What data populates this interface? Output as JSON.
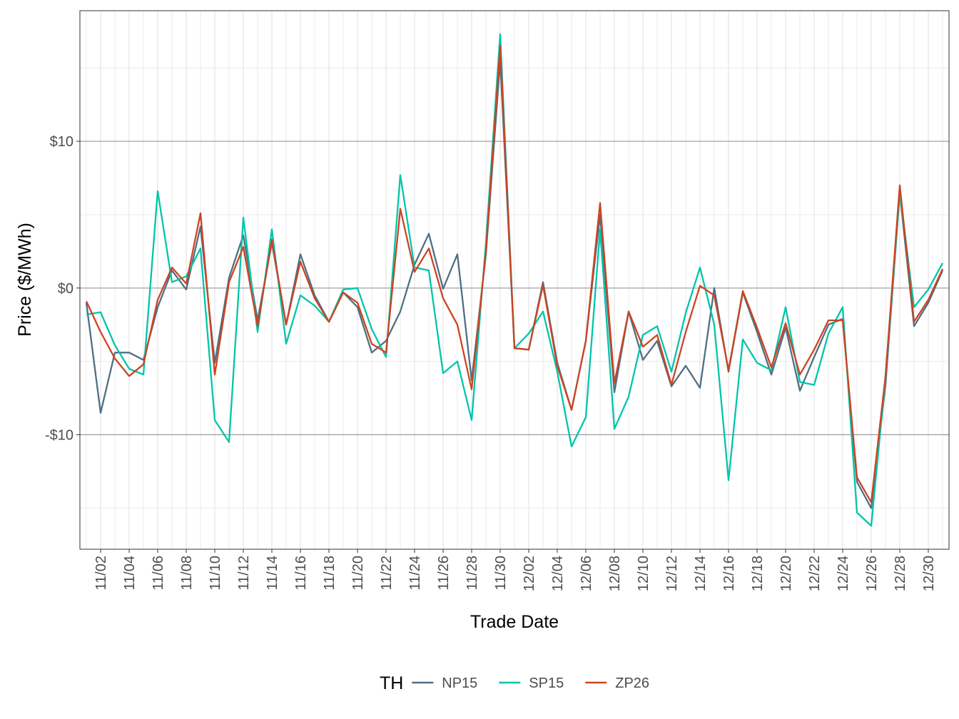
{
  "chart_data": {
    "type": "line",
    "x_label": "Trade Date",
    "y_label": "Price ($/MWh)",
    "legend_title": "TH",
    "legend_position": "bottom",
    "grid": true,
    "categories": [
      null,
      "11/02",
      null,
      "11/04",
      null,
      "11/06",
      null,
      "11/08",
      null,
      "11/10",
      null,
      "11/12",
      null,
      "11/14",
      null,
      "11/16",
      null,
      "11/18",
      null,
      "11/20",
      null,
      "11/22",
      null,
      "11/24",
      null,
      "11/26",
      null,
      "11/28",
      null,
      "11/30",
      null,
      "12/02",
      null,
      "12/04",
      null,
      "12/06",
      null,
      "12/08",
      null,
      "12/10",
      null,
      "12/12",
      null,
      "12/14",
      null,
      "12/16",
      null,
      "12/18",
      null,
      "12/20",
      null,
      "12/22",
      null,
      "12/24",
      null,
      "12/26",
      null,
      "12/28",
      null,
      "12/30",
      null
    ],
    "ylim": [
      -17.8,
      18.9
    ],
    "yticks": [
      {
        "value": -10,
        "label": "-$10"
      },
      {
        "value": 0,
        "label": "$0"
      },
      {
        "value": 10,
        "label": "$10"
      }
    ],
    "series": [
      {
        "name": "NP15",
        "color": "#4f6f84",
        "values": [
          -1.0,
          -8.5,
          -4.4,
          -4.4,
          -4.9,
          -1.3,
          1.2,
          -0.1,
          4.2,
          -5.1,
          0.7,
          3.6,
          -2.2,
          3.1,
          -2.5,
          2.3,
          -0.5,
          -2.3,
          -0.3,
          -1.3,
          -4.4,
          -3.6,
          -1.6,
          1.6,
          3.7,
          -0.05,
          2.3,
          -6.3,
          2.3,
          15.5,
          -4.1,
          -4.2,
          0.4,
          -5.1,
          -8.3,
          -3.6,
          5.0,
          -7.1,
          -1.6,
          -4.9,
          -3.6,
          -6.7,
          -5.3,
          -6.8,
          0,
          -5.7,
          -0.3,
          -3.0,
          -5.9,
          -2.7,
          -7.0,
          -4.7,
          -2.5,
          -2.1,
          -13.2,
          -15.0,
          -6.6,
          6.5,
          -2.6,
          -1.0,
          1.2
        ]
      },
      {
        "name": "SP15",
        "color": "#00c5aa",
        "values": [
          -1.8,
          -1.65,
          -3.9,
          -5.5,
          -5.9,
          6.6,
          0.4,
          0.8,
          2.7,
          -9.0,
          -10.5,
          4.8,
          -3.0,
          4.0,
          -3.8,
          -0.5,
          -1.2,
          -2.3,
          -0.1,
          0,
          -2.8,
          -4.7,
          7.7,
          1.4,
          1.2,
          -5.8,
          -5.0,
          -9.0,
          3.1,
          17.3,
          -4.1,
          -3.1,
          -1.6,
          -5.7,
          -10.8,
          -8.8,
          4.0,
          -9.6,
          -7.4,
          -3.2,
          -2.6,
          -5.7,
          -1.7,
          1.4,
          -2.5,
          -13.1,
          -3.5,
          -5.1,
          -5.6,
          -1.3,
          -6.4,
          -6.6,
          -3.1,
          -1.3,
          -15.3,
          -16.2,
          -6.1,
          6.5,
          -1.3,
          -0.1,
          1.7
        ]
      },
      {
        "name": "ZP26",
        "color": "#cc4422",
        "values": [
          -0.9,
          -3.0,
          -4.8,
          -6.0,
          -5.2,
          -0.8,
          1.4,
          0.3,
          5.1,
          -5.9,
          0.4,
          2.8,
          -2.6,
          3.3,
          -2.5,
          1.8,
          -0.7,
          -2.3,
          -0.3,
          -1.0,
          -3.8,
          -4.4,
          5.4,
          1.1,
          2.7,
          -0.7,
          -2.5,
          -6.9,
          2.5,
          16.5,
          -4.1,
          -4.2,
          0.2,
          -5.3,
          -8.3,
          -3.6,
          5.8,
          -6.5,
          -1.6,
          -4.0,
          -3.2,
          -6.6,
          -3.0,
          0.15,
          -0.5,
          -5.6,
          -0.2,
          -2.7,
          -5.4,
          -2.4,
          -5.9,
          -4.2,
          -2.2,
          -2.2,
          -12.9,
          -14.6,
          -6.0,
          7.0,
          -2.3,
          -0.8,
          1.3
        ]
      }
    ]
  }
}
